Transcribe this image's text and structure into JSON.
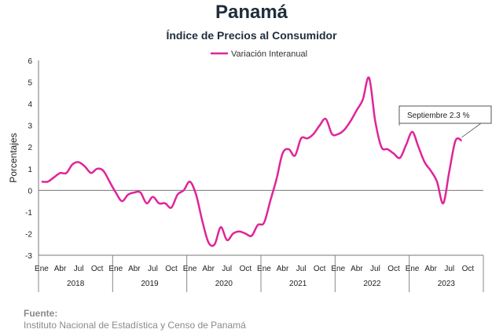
{
  "header": {
    "title": "Panamá",
    "subtitle": "Índice de Precios al Consumidor"
  },
  "source": {
    "label": "Fuente:",
    "text": "Instituto Nacional de Estadística y Censo de Panamá"
  },
  "chart_data": {
    "type": "line",
    "title": "Panamá",
    "subtitle": "Índice de Precios al Consumidor",
    "xlabel": "",
    "ylabel": "Porcentajes",
    "ylim": [
      -3,
      6
    ],
    "yticks": [
      "-3",
      "-2",
      "-1",
      "0",
      "1",
      "2",
      "3",
      "4",
      "5",
      "6"
    ],
    "month_labels": [
      "Ene",
      "Abr",
      "Jul",
      "Oct"
    ],
    "years": [
      "2018",
      "2019",
      "2020",
      "2021",
      "2022",
      "2023"
    ],
    "legend": "top-center",
    "grid": false,
    "line_color": "#e0249a",
    "x": [
      "2018-01",
      "2018-02",
      "2018-03",
      "2018-04",
      "2018-05",
      "2018-06",
      "2018-07",
      "2018-08",
      "2018-09",
      "2018-10",
      "2018-11",
      "2018-12",
      "2019-01",
      "2019-02",
      "2019-03",
      "2019-04",
      "2019-05",
      "2019-06",
      "2019-07",
      "2019-08",
      "2019-09",
      "2019-10",
      "2019-11",
      "2019-12",
      "2020-01",
      "2020-02",
      "2020-03",
      "2020-04",
      "2020-05",
      "2020-06",
      "2020-07",
      "2020-08",
      "2020-09",
      "2020-10",
      "2020-11",
      "2020-12",
      "2021-01",
      "2021-02",
      "2021-03",
      "2021-04",
      "2021-05",
      "2021-06",
      "2021-07",
      "2021-08",
      "2021-09",
      "2021-10",
      "2021-11",
      "2021-12",
      "2022-01",
      "2022-02",
      "2022-03",
      "2022-04",
      "2022-05",
      "2022-06",
      "2022-07",
      "2022-08",
      "2022-09",
      "2022-10",
      "2022-11",
      "2022-12",
      "2023-01",
      "2023-02",
      "2023-03",
      "2023-04",
      "2023-05",
      "2023-06",
      "2023-07",
      "2023-08",
      "2023-09"
    ],
    "series": [
      {
        "name": "Variación Interanual",
        "values": [
          0.4,
          0.4,
          0.6,
          0.8,
          0.8,
          1.2,
          1.3,
          1.1,
          0.8,
          1.0,
          0.9,
          0.4,
          -0.1,
          -0.5,
          -0.2,
          -0.1,
          -0.1,
          -0.6,
          -0.3,
          -0.6,
          -0.6,
          -0.8,
          -0.2,
          0.0,
          0.4,
          -0.2,
          -1.4,
          -2.4,
          -2.5,
          -1.7,
          -2.3,
          -2.0,
          -1.9,
          -2.0,
          -2.1,
          -1.6,
          -1.5,
          -0.5,
          0.5,
          1.7,
          1.9,
          1.6,
          2.4,
          2.4,
          2.6,
          3.0,
          3.3,
          2.6,
          2.6,
          2.8,
          3.2,
          3.7,
          4.2,
          5.2,
          3.2,
          2.0,
          1.9,
          1.7,
          1.5,
          2.1,
          2.7,
          2.0,
          1.3,
          0.9,
          0.4,
          -0.6,
          0.9,
          2.3,
          2.3
        ]
      }
    ],
    "annotation": "Septiembre 2.3 %"
  }
}
